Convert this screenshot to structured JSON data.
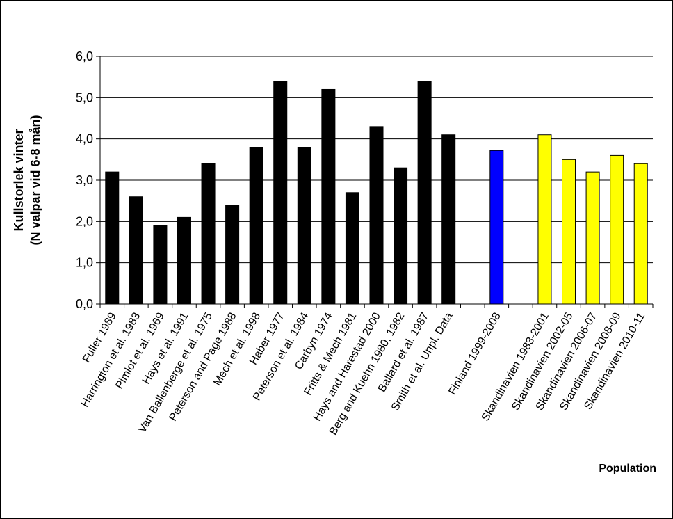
{
  "chart_data": {
    "type": "bar",
    "ylabel_line1": "Kullstorlek vinter",
    "ylabel_line2": "(N valpar vid 6-8 mån)",
    "xlabel": "Population",
    "ylim": [
      0,
      6
    ],
    "yticks": [
      "0,0",
      "1,0",
      "2,0",
      "3,0",
      "4,0",
      "5,0",
      "6,0"
    ],
    "grid": true,
    "colors": {
      "studies": "#000000",
      "finland": "#0000ff",
      "scandinavia": "#ffff00"
    },
    "categories": [
      "Fuller 1989",
      "Harrington et al. 1983",
      "Pimlot et al. 1969",
      "Hays et al. 1991",
      "Van Ballenberge et al. 1975",
      "Peterson and Page 1988",
      "Mech et al. 1998",
      "Haber 1977",
      "Peterson et al. 1984",
      "Carbyn 1974",
      "Fritts & Mech 1981",
      "Hays and Harestad 2000",
      "Berg and Kuehn 1980, 1982",
      "Ballard et al. 1987",
      "Smith et al. Unpl. Data",
      "",
      "Finland 1999-2008",
      "",
      "Skandinavien 1983-2001",
      "Skandinavien 2002-05",
      "Skandinavien 2006-07",
      "Skandinavien 2008-09",
      "Skandinavien 2010-11"
    ],
    "values": [
      3.2,
      2.6,
      1.9,
      2.1,
      3.4,
      2.4,
      3.8,
      5.4,
      3.8,
      5.2,
      2.7,
      4.3,
      3.3,
      5.4,
      4.1,
      null,
      3.72,
      null,
      4.1,
      3.5,
      3.2,
      3.6,
      3.4
    ],
    "groups": [
      "studies",
      "studies",
      "studies",
      "studies",
      "studies",
      "studies",
      "studies",
      "studies",
      "studies",
      "studies",
      "studies",
      "studies",
      "studies",
      "studies",
      "studies",
      "none",
      "finland",
      "none",
      "scandinavia",
      "scandinavia",
      "scandinavia",
      "scandinavia",
      "scandinavia"
    ]
  }
}
